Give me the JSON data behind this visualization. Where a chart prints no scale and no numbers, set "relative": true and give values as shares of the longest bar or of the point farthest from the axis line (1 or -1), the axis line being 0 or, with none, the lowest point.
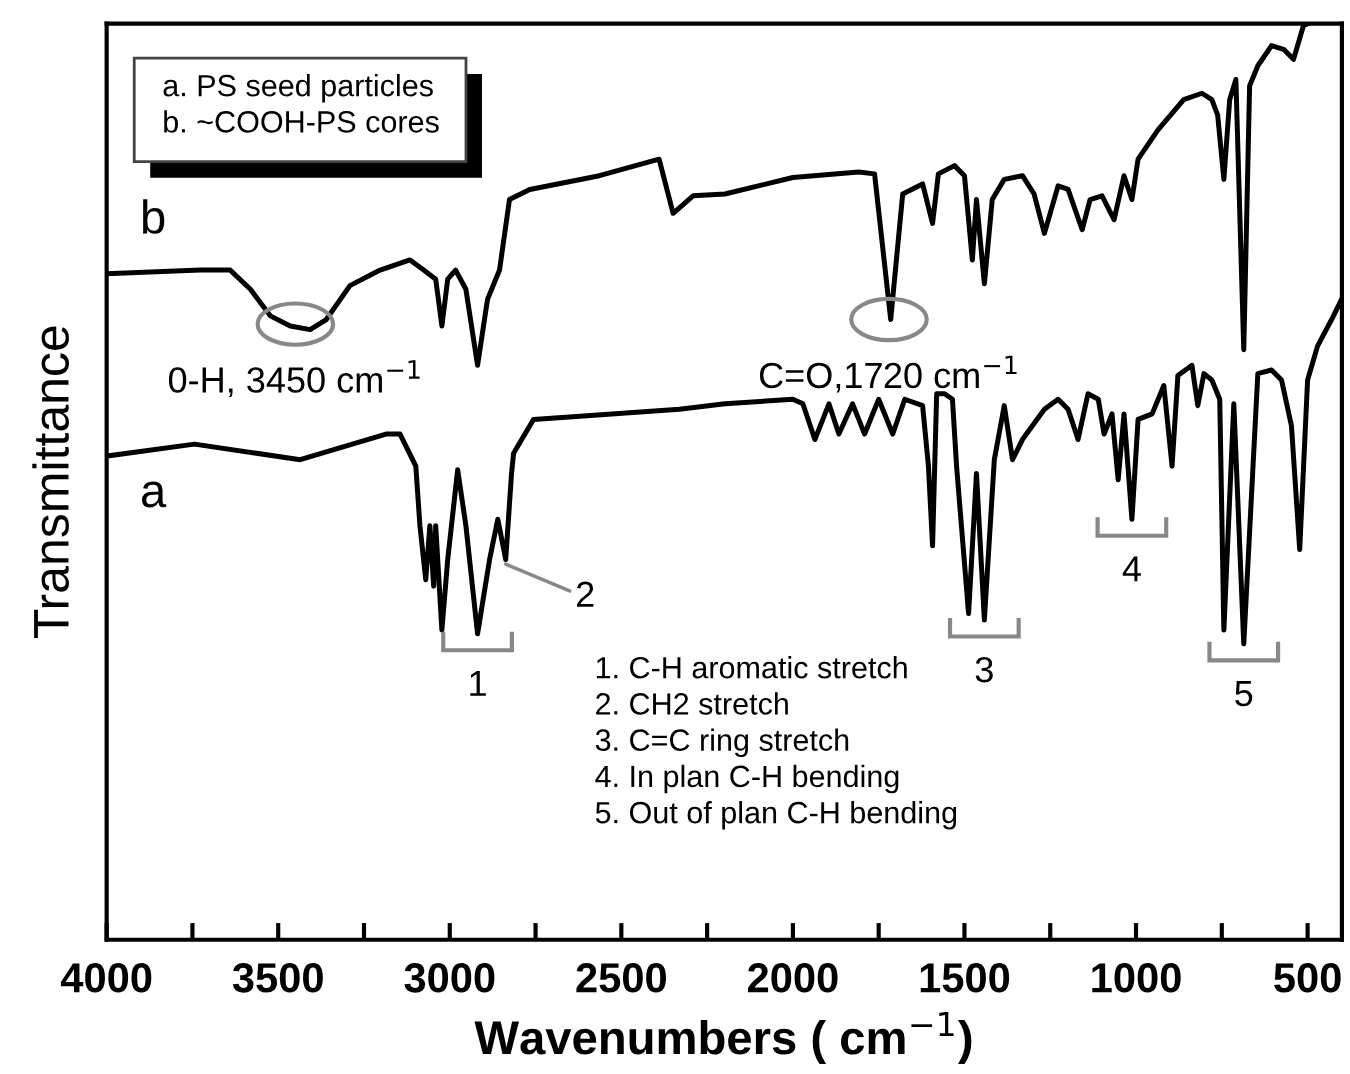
{
  "chart_data": {
    "type": "line",
    "relative": true,
    "xlabel": "Wavenumbers ( cm$^{−1}$)",
    "ylabel": "Transmittance",
    "xlim": [
      4000,
      400
    ],
    "xticks": [
      4000,
      {
        "value": 3750,
        "label": null
      },
      3500,
      {
        "value": 3250,
        "label": null
      },
      3000,
      {
        "value": 2750,
        "label": null
      },
      2500,
      {
        "value": 2250,
        "label": null
      },
      2000,
      {
        "value": 1750,
        "label": null
      },
      1500,
      {
        "value": 1250,
        "label": null
      },
      1000,
      {
        "value": 750,
        "label": null
      },
      500
    ],
    "tick_labels": "x",
    "series": [
      {
        "name": "b",
        "color": "#000000",
        "x": [
          4000,
          3727,
          3640,
          3581,
          3523,
          3465,
          3407,
          3360,
          3291,
          3203,
          3116,
          3076,
          3041,
          3023,
          3006,
          2983,
          2953,
          2919,
          2890,
          2855,
          2826,
          2767,
          2564,
          2390,
          2349,
          2291,
          2198,
          2000,
          1808,
          1762,
          1715,
          1680,
          1622,
          1593,
          1576,
          1529,
          1500,
          1477,
          1465,
          1442,
          1419,
          1384,
          1331,
          1297,
          1267,
          1227,
          1198,
          1157,
          1134,
          1099,
          1064,
          1035,
          1012,
          994,
          936,
          861,
          808,
          779,
          762,
          744,
          727,
          709,
          686,
          669,
          645,
          605,
          570,
          541,
          512,
          500
        ],
        "values": [
          0.727,
          0.731,
          0.731,
          0.71,
          0.681,
          0.67,
          0.666,
          0.677,
          0.714,
          0.731,
          0.742,
          0.731,
          0.721,
          0.67,
          0.721,
          0.731,
          0.71,
          0.627,
          0.699,
          0.731,
          0.808,
          0.819,
          0.834,
          0.852,
          0.793,
          0.812,
          0.814,
          0.832,
          0.838,
          0.836,
          0.677,
          0.814,
          0.825,
          0.782,
          0.836,
          0.845,
          0.834,
          0.742,
          0.808,
          0.716,
          0.808,
          0.83,
          0.834,
          0.814,
          0.771,
          0.823,
          0.819,
          0.775,
          0.808,
          0.812,
          0.786,
          0.834,
          0.808,
          0.852,
          0.884,
          0.917,
          0.924,
          0.917,
          0.9,
          0.83,
          0.917,
          0.939,
          0.644,
          0.932,
          0.954,
          0.976,
          0.972,
          0.961,
          0.998,
          1.0
        ]
      },
      {
        "name": "a",
        "color": "#000000",
        "x": [
          4000,
          3744,
          3436,
          3186,
          3145,
          3099,
          3087,
          3070,
          3058,
          3047,
          3041,
          3023,
          3006,
          2977,
          2953,
          2919,
          2884,
          2860,
          2837,
          2820,
          2814,
          2756,
          2331,
          2198,
          2000,
          1971,
          1936,
          1895,
          1866,
          1826,
          1791,
          1750,
          1709,
          1674,
          1622,
          1605,
          1593,
          1581,
          1558,
          1535,
          1523,
          1488,
          1465,
          1442,
          1413,
          1384,
          1360,
          1331,
          1302,
          1267,
          1227,
          1198,
          1169,
          1140,
          1110,
          1093,
          1070,
          1052,
          1035,
          1012,
          994,
          953,
          919,
          895,
          878,
          837,
          820,
          802,
          779,
          756,
          744,
          715,
          686,
          645,
          605,
          576,
          547,
          523,
          500,
          471,
          430,
          401
        ],
        "values": [
          0.528,
          0.541,
          0.524,
          0.552,
          0.552,
          0.517,
          0.452,
          0.393,
          0.452,
          0.386,
          0.452,
          0.338,
          0.415,
          0.513,
          0.452,
          0.334,
          0.415,
          0.459,
          0.415,
          0.509,
          0.531,
          0.568,
          0.579,
          0.585,
          0.59,
          0.585,
          0.546,
          0.585,
          0.552,
          0.585,
          0.552,
          0.59,
          0.552,
          0.59,
          0.583,
          0.517,
          0.43,
          0.596,
          0.596,
          0.59,
          0.517,
          0.356,
          0.509,
          0.349,
          0.524,
          0.583,
          0.524,
          0.546,
          0.561,
          0.579,
          0.59,
          0.579,
          0.546,
          0.596,
          0.59,
          0.552,
          0.574,
          0.502,
          0.574,
          0.459,
          0.568,
          0.574,
          0.605,
          0.517,
          0.616,
          0.627,
          0.583,
          0.618,
          0.611,
          0.59,
          0.338,
          0.585,
          0.323,
          0.618,
          0.622,
          0.611,
          0.561,
          0.426,
          0.611,
          0.648,
          0.677,
          0.699
        ]
      }
    ],
    "annotations": [
      "a. PS seed particles\nb. ~COOH-PS cores",
      "1. C-H aromatic stretch\n2. CH2 stretch\n3. C=C ring stretch\n4. In plan C-H bending\n5. Out of plan C-H bending",
      {
        "text": "0-H, 3450 cm$^{−1}$",
        "x": 3450,
        "y": 0.672
      },
      {
        "text": "C=O,1720 cm$^{−1}$",
        "x": 1720,
        "y": 0.677
      },
      {
        "text": "1",
        "x": 2919,
        "y": 0.334
      },
      {
        "text": "2",
        "x": 2837,
        "y": 0.41
      },
      {
        "text": "3",
        "x": 1442,
        "y": 0.349
      },
      {
        "text": "4",
        "x": 1012,
        "y": 0.459
      },
      {
        "text": "5",
        "x": 686,
        "y": 0.323
      }
    ]
  }
}
